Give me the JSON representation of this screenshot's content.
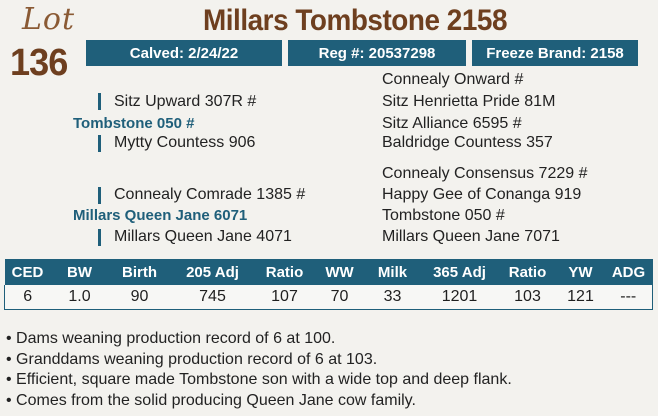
{
  "lot": {
    "word": "Lot",
    "number": "136"
  },
  "title": "Millars Tombstone 2158",
  "info_bar": {
    "calved": "Calved: 2/24/22",
    "reg": "Reg #: 20537298",
    "freeze_brand": "Freeze Brand: 2158"
  },
  "pedigree": {
    "sire": "Tombstone 050 #",
    "sire_sire": "Sitz Upward 307R #",
    "sire_dam": "Mytty Countess 906",
    "ss_sire": "Connealy Onward #",
    "ss_dam": "Sitz Henrietta Pride 81M",
    "sd_sire": "Sitz Alliance 6595 #",
    "sd_dam": "Baldridge Countess 357",
    "dam": "Millars Queen Jane 6071",
    "dam_sire": "Connealy Comrade 1385 #",
    "dam_dam": "Millars Queen Jane 4071",
    "ds_sire": "Connealy Consensus 7229 #",
    "ds_dam": "Happy Gee of Conanga 919",
    "dd_sire": "Tombstone 050 #",
    "dd_dam": "Millars Queen Jane 7071"
  },
  "performance": {
    "headers": [
      "CED",
      "BW",
      "Birth",
      "205 Adj",
      "Ratio",
      "WW",
      "Milk",
      "365 Adj",
      "Ratio",
      "YW",
      "ADG"
    ],
    "values": [
      "6",
      "1.0",
      "90",
      "745",
      "107",
      "70",
      "33",
      "1201",
      "103",
      "121",
      "---"
    ]
  },
  "notes": [
    "Dams weaning production record of 6 at 100.",
    "Granddams weaning production record of 6 at 103.",
    "Efficient, square made Tombstone son with a wide top and deep flank.",
    "Comes from the solid producing Queen Jane cow family."
  ],
  "colors": {
    "brand_blue": "#1f5f7a",
    "brown": "#6e3f1f",
    "background": "#f3f2ee"
  }
}
